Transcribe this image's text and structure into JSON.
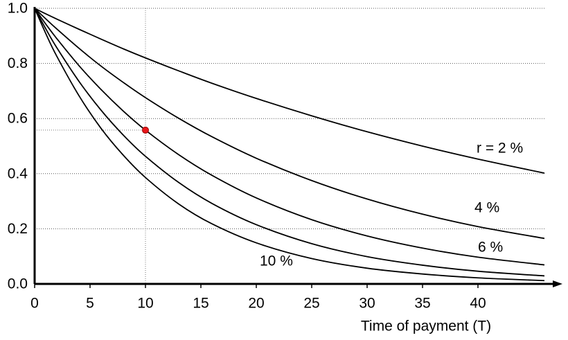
{
  "chart_data": {
    "type": "line",
    "x": [
      0,
      1,
      2,
      4,
      6,
      8,
      10,
      13,
      16,
      20,
      25,
      30,
      35,
      40,
      46
    ],
    "series": [
      {
        "name": "r = 2 %",
        "color": "#000000",
        "values": [
          1,
          0.98,
          0.961,
          0.924,
          0.888,
          0.853,
          0.82,
          0.773,
          0.728,
          0.673,
          0.61,
          0.552,
          0.5,
          0.453,
          0.402
        ]
      },
      {
        "name": "4 %",
        "color": "#000000",
        "values": [
          1,
          0.962,
          0.925,
          0.855,
          0.79,
          0.731,
          0.676,
          0.601,
          0.534,
          0.456,
          0.375,
          0.308,
          0.253,
          0.208,
          0.165
        ]
      },
      {
        "name": "6 %",
        "color": "#000000",
        "values": [
          1,
          0.943,
          0.89,
          0.792,
          0.705,
          0.627,
          0.558,
          0.469,
          0.394,
          0.312,
          0.233,
          0.174,
          0.13,
          0.097,
          0.069
        ]
      },
      {
        "color": "#000000",
        "values": [
          1,
          0.926,
          0.857,
          0.735,
          0.63,
          0.54,
          0.463,
          0.368,
          0.292,
          0.215,
          0.146,
          0.099,
          0.068,
          0.046,
          0.029
        ]
      },
      {
        "name": "10 %",
        "color": "#000000",
        "values": [
          1,
          0.909,
          0.826,
          0.683,
          0.564,
          0.467,
          0.386,
          0.29,
          0.218,
          0.149,
          0.092,
          0.057,
          0.036,
          0.022,
          0.012
        ]
      }
    ],
    "highlight": {
      "x": 10,
      "y": 0.558,
      "color": "#e8161b"
    },
    "x_label": "Time of payment (T)",
    "xlim": [
      0,
      46
    ],
    "xticks": [
      0,
      5,
      10,
      15,
      20,
      25,
      30,
      35,
      40
    ],
    "ylim": [
      0,
      1
    ],
    "yticks": [
      {
        "value": 0,
        "label": "0.0"
      },
      {
        "value": 0.2,
        "label": "0.2"
      },
      {
        "value": 0.4,
        "label": "0.4"
      },
      {
        "value": 0.6,
        "label": "0.6"
      },
      {
        "value": 0.8,
        "label": "0.8"
      },
      {
        "value": 1,
        "label": "1.0"
      }
    ],
    "grid": true
  }
}
